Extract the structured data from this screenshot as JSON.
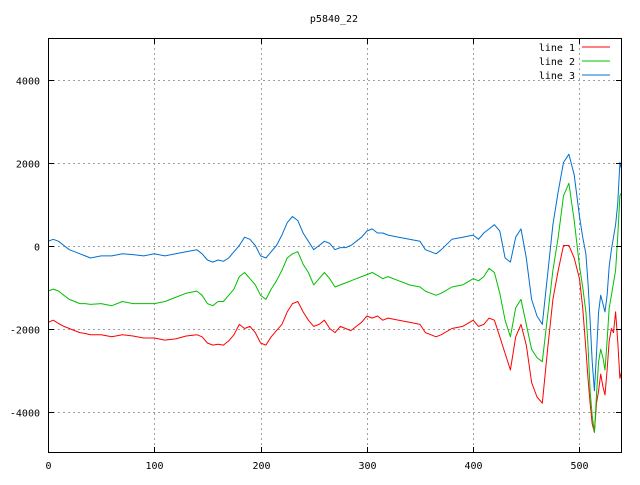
{
  "chart_data": {
    "type": "line",
    "title": "p5840_22",
    "xlabel": "",
    "ylabel": "",
    "xlim": [
      0,
      540
    ],
    "ylim": [
      -5000,
      5000
    ],
    "x_ticks": [
      0,
      100,
      200,
      300,
      400,
      500
    ],
    "y_ticks": [
      -4000,
      -2000,
      0,
      2000,
      4000
    ],
    "x_tick_labels": [
      "0",
      "100",
      "200",
      "300",
      "400",
      "500"
    ],
    "y_tick_labels": [
      "-4000",
      "-2000",
      "0",
      "2000",
      "4000"
    ],
    "grid": true,
    "legend": "top-right",
    "series": [
      {
        "name": "line 1",
        "color": "#ff0000",
        "x": [
          0,
          5,
          10,
          15,
          20,
          25,
          30,
          35,
          40,
          50,
          60,
          70,
          80,
          90,
          100,
          110,
          120,
          130,
          140,
          145,
          150,
          155,
          160,
          165,
          170,
          175,
          180,
          185,
          190,
          195,
          200,
          205,
          210,
          215,
          220,
          225,
          230,
          235,
          240,
          245,
          250,
          255,
          260,
          265,
          270,
          275,
          280,
          285,
          290,
          295,
          300,
          305,
          310,
          315,
          320,
          330,
          340,
          350,
          355,
          360,
          365,
          370,
          380,
          390,
          400,
          405,
          410,
          415,
          420,
          425,
          430,
          435,
          440,
          445,
          450,
          455,
          460,
          465,
          470,
          475,
          480,
          485,
          490,
          495,
          500,
          503,
          506,
          508,
          510,
          512,
          514,
          516,
          518,
          520,
          522,
          524,
          526,
          528,
          530,
          532,
          534,
          536,
          538,
          540
        ],
        "y": [
          -1850,
          -1800,
          -1880,
          -1950,
          -2000,
          -2050,
          -2100,
          -2120,
          -2150,
          -2150,
          -2200,
          -2150,
          -2180,
          -2230,
          -2230,
          -2280,
          -2250,
          -2180,
          -2150,
          -2200,
          -2350,
          -2400,
          -2380,
          -2400,
          -2300,
          -2150,
          -1900,
          -2000,
          -1950,
          -2100,
          -2350,
          -2400,
          -2200,
          -2050,
          -1900,
          -1600,
          -1400,
          -1350,
          -1600,
          -1800,
          -1950,
          -1900,
          -1800,
          -2000,
          -2100,
          -1950,
          -2000,
          -2050,
          -1950,
          -1850,
          -1700,
          -1750,
          -1700,
          -1800,
          -1750,
          -1800,
          -1850,
          -1900,
          -2100,
          -2150,
          -2200,
          -2150,
          -2000,
          -1950,
          -1800,
          -1950,
          -1900,
          -1750,
          -1800,
          -2200,
          -2600,
          -3000,
          -2200,
          -1900,
          -2400,
          -3300,
          -3650,
          -3800,
          -2500,
          -1300,
          -600,
          0,
          0,
          -300,
          -800,
          -1500,
          -2500,
          -3200,
          -3800,
          -4300,
          -4500,
          -3800,
          -3500,
          -3100,
          -3400,
          -3600,
          -3000,
          -2300,
          -2000,
          -2100,
          -1600,
          -2300,
          -3200,
          -3000
        ]
      },
      {
        "name": "line 2",
        "color": "#00c000",
        "x": [
          0,
          5,
          10,
          15,
          20,
          25,
          30,
          35,
          40,
          50,
          60,
          70,
          80,
          90,
          100,
          110,
          120,
          130,
          140,
          145,
          150,
          155,
          160,
          165,
          170,
          175,
          180,
          185,
          190,
          195,
          200,
          205,
          210,
          215,
          220,
          225,
          230,
          235,
          240,
          245,
          250,
          255,
          260,
          265,
          270,
          275,
          280,
          285,
          290,
          295,
          300,
          305,
          310,
          315,
          320,
          330,
          340,
          350,
          355,
          360,
          365,
          370,
          380,
          390,
          400,
          405,
          410,
          415,
          420,
          425,
          430,
          435,
          440,
          445,
          450,
          455,
          460,
          465,
          470,
          475,
          480,
          485,
          490,
          495,
          500,
          503,
          506,
          508,
          510,
          512,
          514,
          516,
          518,
          520,
          522,
          524,
          526,
          528,
          530,
          532,
          534,
          536,
          538,
          540
        ],
        "y": [
          -1100,
          -1050,
          -1100,
          -1200,
          -1300,
          -1350,
          -1400,
          -1400,
          -1420,
          -1400,
          -1450,
          -1350,
          -1400,
          -1400,
          -1400,
          -1350,
          -1250,
          -1150,
          -1100,
          -1200,
          -1400,
          -1450,
          -1350,
          -1350,
          -1200,
          -1050,
          -750,
          -650,
          -800,
          -950,
          -1200,
          -1300,
          -1050,
          -850,
          -600,
          -300,
          -200,
          -150,
          -450,
          -650,
          -950,
          -800,
          -650,
          -800,
          -1000,
          -950,
          -900,
          -850,
          -800,
          -750,
          -700,
          -650,
          -720,
          -800,
          -750,
          -850,
          -950,
          -1000,
          -1100,
          -1150,
          -1200,
          -1150,
          -1000,
          -950,
          -800,
          -850,
          -750,
          -550,
          -650,
          -1150,
          -1800,
          -2200,
          -1500,
          -1300,
          -1900,
          -2500,
          -2700,
          -2800,
          -1700,
          -600,
          200,
          1200,
          1500,
          600,
          -500,
          -1000,
          -1600,
          -2400,
          -3500,
          -4100,
          -4500,
          -3600,
          -2800,
          -2500,
          -2700,
          -3000,
          -2300,
          -1500,
          -1200,
          -900,
          -600,
          200,
          1200,
          1300
        ]
      },
      {
        "name": "line 3",
        "color": "#0070d0",
        "x": [
          0,
          5,
          10,
          15,
          20,
          25,
          30,
          35,
          40,
          50,
          60,
          70,
          80,
          90,
          100,
          110,
          120,
          130,
          140,
          145,
          150,
          155,
          160,
          165,
          170,
          175,
          180,
          185,
          190,
          195,
          200,
          205,
          210,
          215,
          220,
          225,
          230,
          235,
          240,
          245,
          250,
          255,
          260,
          265,
          270,
          275,
          280,
          285,
          290,
          295,
          300,
          305,
          310,
          315,
          320,
          330,
          340,
          350,
          355,
          360,
          365,
          370,
          380,
          390,
          400,
          405,
          410,
          415,
          420,
          425,
          430,
          435,
          440,
          445,
          450,
          455,
          460,
          465,
          470,
          475,
          480,
          485,
          490,
          495,
          500,
          503,
          506,
          508,
          510,
          512,
          514,
          516,
          518,
          520,
          522,
          524,
          526,
          528,
          530,
          532,
          534,
          536,
          538,
          540
        ],
        "y": [
          100,
          150,
          100,
          0,
          -100,
          -150,
          -200,
          -250,
          -300,
          -250,
          -250,
          -200,
          -220,
          -250,
          -200,
          -250,
          -200,
          -150,
          -100,
          -200,
          -350,
          -400,
          -350,
          -380,
          -300,
          -150,
          0,
          200,
          150,
          0,
          -250,
          -300,
          -150,
          0,
          250,
          550,
          700,
          600,
          300,
          100,
          -100,
          0,
          100,
          50,
          -100,
          -50,
          -50,
          0,
          100,
          200,
          350,
          400,
          300,
          300,
          250,
          200,
          150,
          100,
          -100,
          -150,
          -200,
          -100,
          150,
          200,
          250,
          150,
          300,
          400,
          500,
          350,
          -300,
          -400,
          200,
          400,
          -300,
          -1300,
          -1700,
          -1900,
          -700,
          500,
          1300,
          2000,
          2200,
          1700,
          700,
          200,
          -200,
          -900,
          -1800,
          -2800,
          -3500,
          -2600,
          -1600,
          -1200,
          -1400,
          -1600,
          -1200,
          -500,
          -100,
          200,
          500,
          1000,
          2000,
          1800
        ]
      }
    ]
  }
}
